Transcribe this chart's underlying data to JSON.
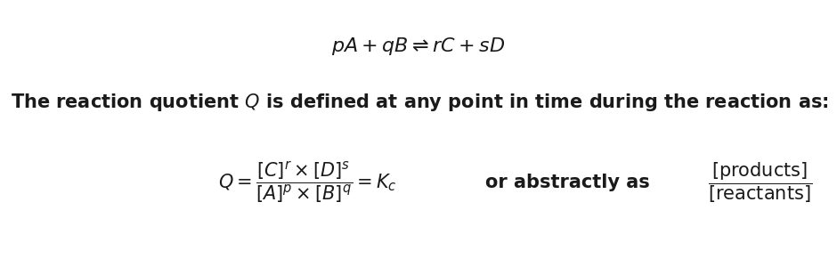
{
  "background_color": "#ffffff",
  "text_color": "#1a1a1a",
  "equation_top": "$pA+qB\\rightleftharpoons rC+sD$",
  "body_text": "The reaction quotient $Q$ is defined at any point in time during the reaction as:",
  "equation_bottom_left": "$Q=\\dfrac{[C]^{r}\\times[D]^{s}}{[A]^{p}\\times[B]^{q}}=K_{c}$",
  "equation_middle": "or abstractly as",
  "equation_bottom_right": "$\\dfrac{[\\mathrm{products}]}{[\\mathrm{reactants}]}$",
  "font_size_top": 16,
  "font_size_body": 15,
  "font_size_eq": 15
}
